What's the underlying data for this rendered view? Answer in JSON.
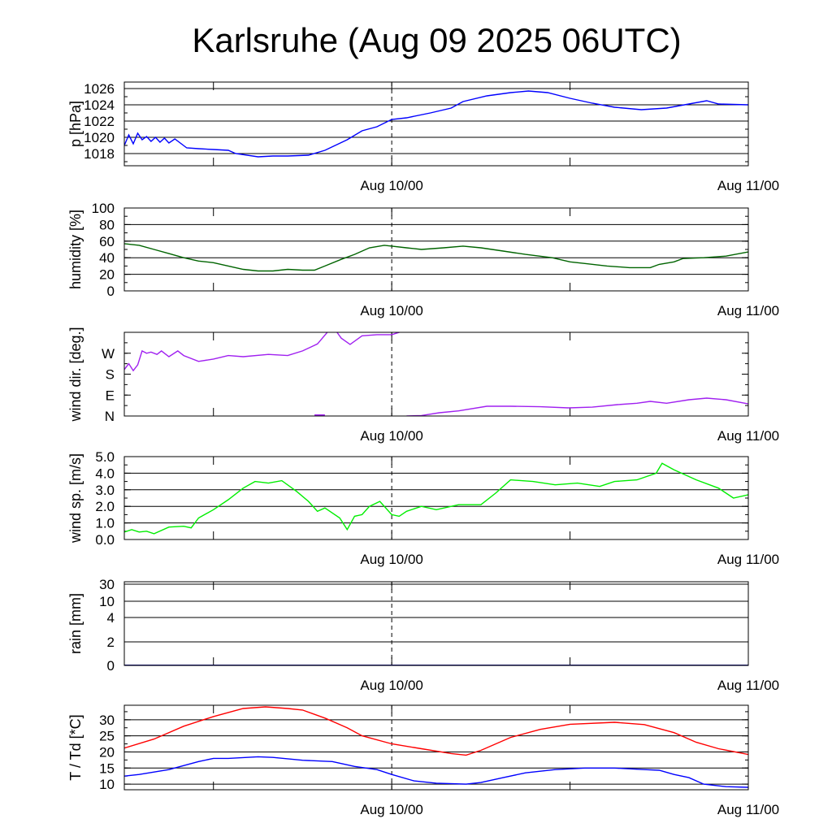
{
  "title": "Karlsruhe (Aug 09 2025 06UTC)",
  "chart_data": [
    {
      "type": "line",
      "ylabel": "p [hPa]",
      "ylim": [
        1016.5,
        1026.8
      ],
      "yticks": [
        {
          "v": 1018,
          "label": "1018"
        },
        {
          "v": 1020,
          "label": "1020"
        },
        {
          "v": 1022,
          "label": "1022"
        },
        {
          "v": 1024,
          "label": "1024"
        },
        {
          "v": 1026,
          "label": "1026"
        }
      ],
      "grid": true,
      "scale": "linear",
      "series": [
        {
          "name": "pressure",
          "color": "#0000ff",
          "points": [
            [
              0,
              1019.0
            ],
            [
              0.3,
              1020.3
            ],
            [
              0.6,
              1019.2
            ],
            [
              0.9,
              1020.5
            ],
            [
              1.2,
              1019.7
            ],
            [
              1.5,
              1020.1
            ],
            [
              1.8,
              1019.5
            ],
            [
              2.1,
              1020.0
            ],
            [
              2.4,
              1019.4
            ],
            [
              2.7,
              1019.9
            ],
            [
              3.0,
              1019.3
            ],
            [
              3.4,
              1019.8
            ],
            [
              4.2,
              1018.7
            ],
            [
              5,
              1018.6
            ],
            [
              6,
              1018.5
            ],
            [
              7,
              1018.4
            ],
            [
              7.5,
              1018.0
            ],
            [
              9,
              1017.6
            ],
            [
              10,
              1017.7
            ],
            [
              11,
              1017.7
            ],
            [
              12.4,
              1017.8
            ],
            [
              13.5,
              1018.4
            ],
            [
              15,
              1019.7
            ],
            [
              16,
              1020.8
            ],
            [
              17,
              1021.3
            ],
            [
              18,
              1022.2
            ],
            [
              19,
              1022.4
            ],
            [
              20.6,
              1023.0
            ],
            [
              22,
              1023.6
            ],
            [
              22.8,
              1024.4
            ],
            [
              24.4,
              1025.1
            ],
            [
              26,
              1025.5
            ],
            [
              27.2,
              1025.7
            ],
            [
              28.5,
              1025.5
            ],
            [
              30,
              1024.8
            ],
            [
              31.5,
              1024.2
            ],
            [
              33,
              1023.7
            ],
            [
              34.8,
              1023.4
            ],
            [
              36.5,
              1023.6
            ],
            [
              38,
              1024.1
            ],
            [
              39.2,
              1024.5
            ],
            [
              40,
              1024.1
            ],
            [
              42,
              1024.0
            ]
          ]
        }
      ]
    },
    {
      "type": "line",
      "ylabel": "humidity [%]",
      "ylim": [
        0,
        100
      ],
      "yticks": [
        {
          "v": 0,
          "label": "0"
        },
        {
          "v": 20,
          "label": "20"
        },
        {
          "v": 40,
          "label": "40"
        },
        {
          "v": 60,
          "label": "60"
        },
        {
          "v": 80,
          "label": "80"
        },
        {
          "v": 100,
          "label": "100"
        }
      ],
      "grid": true,
      "scale": "linear",
      "series": [
        {
          "name": "humidity",
          "color": "#006400",
          "points": [
            [
              0,
              57
            ],
            [
              1,
              55
            ],
            [
              2,
              50
            ],
            [
              3,
              45
            ],
            [
              4,
              40
            ],
            [
              5,
              36
            ],
            [
              6,
              34
            ],
            [
              7,
              30
            ],
            [
              8,
              26
            ],
            [
              9,
              24
            ],
            [
              10,
              24
            ],
            [
              11,
              26
            ],
            [
              12,
              25
            ],
            [
              12.8,
              25
            ],
            [
              13.5,
              30
            ],
            [
              14.6,
              38
            ],
            [
              15.5,
              44
            ],
            [
              16.5,
              52
            ],
            [
              17.5,
              55
            ],
            [
              18,
              54
            ],
            [
              19,
              52
            ],
            [
              20,
              50
            ],
            [
              21.5,
              52
            ],
            [
              22.8,
              54
            ],
            [
              24,
              52
            ],
            [
              25.5,
              48
            ],
            [
              27,
              44
            ],
            [
              28.8,
              40
            ],
            [
              30,
              35
            ],
            [
              31,
              33
            ],
            [
              32.5,
              30
            ],
            [
              34,
              28
            ],
            [
              35.4,
              28
            ],
            [
              36,
              32
            ],
            [
              37,
              35
            ],
            [
              37.6,
              39
            ],
            [
              39,
              40
            ],
            [
              40.5,
              42
            ],
            [
              42,
              47
            ]
          ]
        }
      ]
    },
    {
      "type": "line",
      "ylabel": "wind dir. [deg.]",
      "ylim": [
        0,
        360
      ],
      "yticks": [
        {
          "v": 0,
          "label": "N"
        },
        {
          "v": 90,
          "label": "E"
        },
        {
          "v": 180,
          "label": "S"
        },
        {
          "v": 270,
          "label": "W"
        }
      ],
      "grid": false,
      "scale": "linear",
      "series": [
        {
          "name": "wind direction",
          "color": "#a020f0",
          "points": [
            [
              0,
              200
            ],
            [
              0.3,
              225
            ],
            [
              0.6,
              195
            ],
            [
              0.9,
              220
            ],
            [
              1.2,
              280
            ],
            [
              1.5,
              270
            ],
            [
              1.8,
              275
            ],
            [
              2.2,
              265
            ],
            [
              2.5,
              280
            ],
            [
              3,
              255
            ],
            [
              3.6,
              280
            ],
            [
              4,
              260
            ],
            [
              5,
              235
            ],
            [
              6,
              245
            ],
            [
              7,
              260
            ],
            [
              8,
              255
            ],
            [
              9.7,
              265
            ],
            [
              11,
              260
            ],
            [
              12,
              280
            ],
            [
              13,
              310
            ],
            [
              13.8,
              370
            ],
            [
              14.2,
              370
            ],
            [
              14.6,
              335
            ],
            [
              15.2,
              308
            ],
            [
              16,
              345
            ],
            [
              17,
              350
            ],
            [
              18,
              350
            ],
            [
              18.6,
              362
            ],
            [
              19,
              0
            ],
            [
              20,
              2
            ],
            [
              21.2,
              14
            ],
            [
              22.5,
              22
            ],
            [
              24.4,
              42
            ],
            [
              26,
              42
            ],
            [
              28,
              40
            ],
            [
              29.9,
              35
            ],
            [
              31.5,
              38
            ],
            [
              33.2,
              49
            ],
            [
              34.5,
              55
            ],
            [
              35.4,
              63
            ],
            [
              36.5,
              55
            ],
            [
              38,
              70
            ],
            [
              39.2,
              77
            ],
            [
              40.5,
              70
            ],
            [
              42,
              52
            ]
          ]
        }
      ]
    },
    {
      "type": "line",
      "ylabel": "wind sp. [m/s]",
      "ylim": [
        0,
        5
      ],
      "yticks": [
        {
          "v": 0,
          "label": "0.0"
        },
        {
          "v": 1,
          "label": "1.0"
        },
        {
          "v": 2,
          "label": "2.0"
        },
        {
          "v": 3,
          "label": "3.0"
        },
        {
          "v": 4,
          "label": "4.0"
        },
        {
          "v": 5,
          "label": "5.0"
        }
      ],
      "grid": true,
      "scale": "linear",
      "series": [
        {
          "name": "wind speed",
          "color": "#00ee00",
          "points": [
            [
              0,
              0.45
            ],
            [
              0.5,
              0.6
            ],
            [
              1,
              0.45
            ],
            [
              1.5,
              0.5
            ],
            [
              2,
              0.35
            ],
            [
              3,
              0.75
            ],
            [
              4,
              0.8
            ],
            [
              4.5,
              0.7
            ],
            [
              5,
              1.3
            ],
            [
              6,
              1.8
            ],
            [
              7,
              2.4
            ],
            [
              8,
              3.1
            ],
            [
              8.8,
              3.5
            ],
            [
              9.7,
              3.4
            ],
            [
              10.6,
              3.55
            ],
            [
              11.6,
              2.9
            ],
            [
              12.4,
              2.3
            ],
            [
              13,
              1.7
            ],
            [
              13.5,
              1.9
            ],
            [
              14.5,
              1.3
            ],
            [
              15,
              0.6
            ],
            [
              15.5,
              1.4
            ],
            [
              16,
              1.5
            ],
            [
              16.5,
              2.0
            ],
            [
              17.2,
              2.3
            ],
            [
              18,
              1.5
            ],
            [
              18.5,
              1.4
            ],
            [
              19,
              1.7
            ],
            [
              20,
              2.0
            ],
            [
              21,
              1.8
            ],
            [
              22.5,
              2.1
            ],
            [
              24,
              2.1
            ],
            [
              25,
              2.8
            ],
            [
              26,
              3.6
            ],
            [
              27.5,
              3.5
            ],
            [
              29,
              3.3
            ],
            [
              30.5,
              3.4
            ],
            [
              32,
              3.2
            ],
            [
              33,
              3.5
            ],
            [
              34.5,
              3.6
            ],
            [
              35.8,
              4.0
            ],
            [
              36.2,
              4.6
            ],
            [
              37,
              4.2
            ],
            [
              38.5,
              3.6
            ],
            [
              40,
              3.1
            ],
            [
              41,
              2.5
            ],
            [
              42,
              2.7
            ]
          ]
        }
      ]
    },
    {
      "type": "line",
      "ylabel": "rain [mm]",
      "ylim": [
        0,
        40
      ],
      "yticks": [
        {
          "v": 0,
          "label": "0"
        },
        {
          "v": 2,
          "label": "2"
        },
        {
          "v": 4,
          "label": "4"
        },
        {
          "v": 10,
          "label": "10"
        },
        {
          "v": 30,
          "label": "30"
        }
      ],
      "grid": true,
      "scale": "nonlinear",
      "series": [
        {
          "name": "rain",
          "color": "#00008b",
          "points": [
            [
              0,
              0
            ],
            [
              42,
              0
            ]
          ]
        }
      ]
    },
    {
      "type": "line",
      "ylabel": "T / Td [*C]",
      "ylim": [
        8.25,
        34.5
      ],
      "yticks": [
        {
          "v": 10,
          "label": "10"
        },
        {
          "v": 15,
          "label": "15"
        },
        {
          "v": 20,
          "label": "20"
        },
        {
          "v": 25,
          "label": "25"
        },
        {
          "v": 30,
          "label": "30"
        }
      ],
      "grid": true,
      "scale": "linear",
      "series": [
        {
          "name": "T",
          "color": "#ff0000",
          "points": [
            [
              0,
              21.2
            ],
            [
              2,
              24
            ],
            [
              4,
              28
            ],
            [
              6,
              31
            ],
            [
              8,
              33.5
            ],
            [
              9.5,
              34
            ],
            [
              11,
              33.5
            ],
            [
              12,
              33
            ],
            [
              13.5,
              30.5
            ],
            [
              15,
              27.5
            ],
            [
              16,
              25
            ],
            [
              18,
              22.5
            ],
            [
              20,
              21
            ],
            [
              22,
              19.5
            ],
            [
              23,
              19
            ],
            [
              24,
              20.5
            ],
            [
              26,
              24.5
            ],
            [
              28,
              27
            ],
            [
              30,
              28.6
            ],
            [
              33,
              29.2
            ],
            [
              35,
              28.5
            ],
            [
              37,
              26
            ],
            [
              38.5,
              23
            ],
            [
              40,
              21
            ],
            [
              42,
              19.2
            ]
          ]
        },
        {
          "name": "Td",
          "color": "#0000ff",
          "points": [
            [
              0,
              12.5
            ],
            [
              1,
              13
            ],
            [
              3,
              14.5
            ],
            [
              5,
              17
            ],
            [
              6,
              18
            ],
            [
              7,
              18
            ],
            [
              9,
              18.5
            ],
            [
              10,
              18.3
            ],
            [
              12,
              17.4
            ],
            [
              14,
              17
            ],
            [
              15.5,
              15.5
            ],
            [
              17,
              14.5
            ],
            [
              18,
              13
            ],
            [
              19.5,
              11
            ],
            [
              21,
              10.3
            ],
            [
              23,
              10
            ],
            [
              24,
              10.5
            ],
            [
              25.5,
              12
            ],
            [
              27,
              13.5
            ],
            [
              29,
              14.5
            ],
            [
              31,
              15
            ],
            [
              33,
              15
            ],
            [
              35,
              14.5
            ],
            [
              36,
              14.3
            ],
            [
              37,
              13
            ],
            [
              38,
              12
            ],
            [
              39,
              10
            ],
            [
              40.5,
              9.2
            ],
            [
              42,
              9
            ]
          ]
        }
      ]
    }
  ],
  "x_axis": {
    "range_hours": [
      0,
      42
    ],
    "major_ticks_hours": [
      6,
      18,
      30
    ],
    "labels": [
      {
        "h": 18,
        "label": "Aug 10/00"
      },
      {
        "h": 42,
        "label": "Aug 11/00"
      }
    ],
    "dashed_line_hour": 18
  }
}
